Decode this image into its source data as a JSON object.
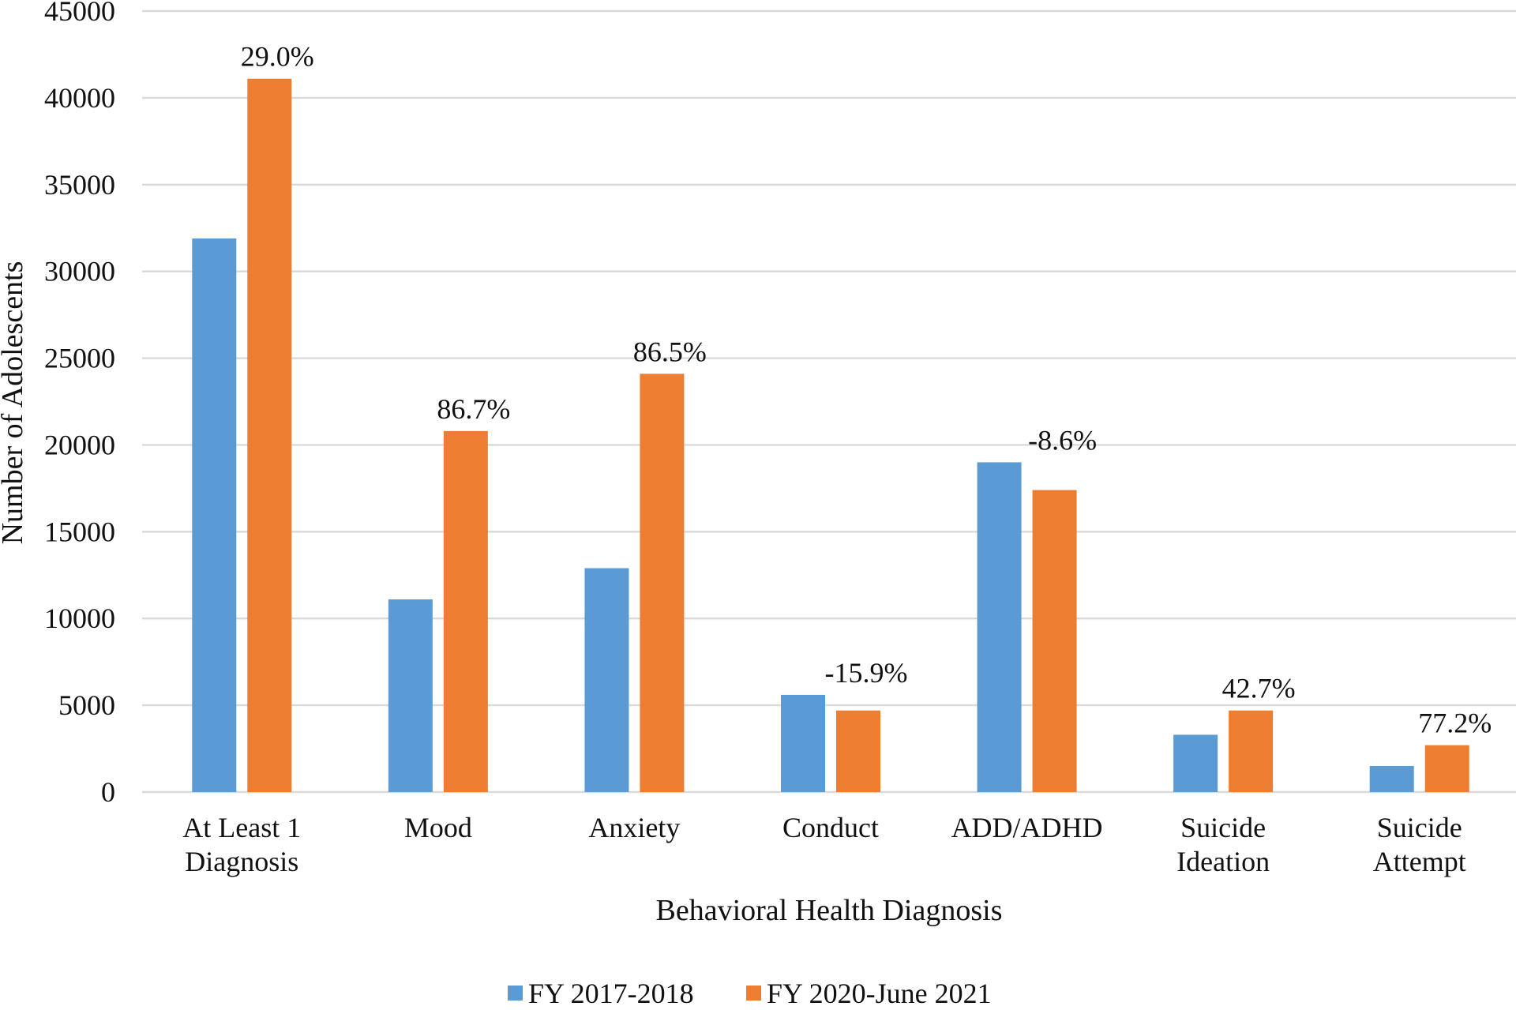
{
  "chart_data": {
    "type": "bar",
    "title": "",
    "xlabel": "Behavioral Health Diagnosis",
    "ylabel": "Number of Adolescents",
    "ylim": [
      0,
      45000
    ],
    "yticks": [
      0,
      5000,
      10000,
      15000,
      20000,
      25000,
      30000,
      35000,
      40000,
      45000
    ],
    "grid": true,
    "legend_position": "bottom",
    "categories": [
      [
        "At Least 1",
        "Diagnosis"
      ],
      [
        "Mood"
      ],
      [
        "Anxiety"
      ],
      [
        "Conduct"
      ],
      [
        "ADD/ADHD"
      ],
      [
        "Suicide",
        "Ideation"
      ],
      [
        "Suicide",
        "Attempt"
      ]
    ],
    "series": [
      {
        "name": "FY 2017-2018",
        "color": "#5b9bd5",
        "values": [
          31900,
          11100,
          12900,
          5600,
          19000,
          3300,
          1500
        ]
      },
      {
        "name": "FY 2020-June 2021",
        "color": "#ed7d31",
        "values": [
          41100,
          20800,
          24100,
          4700,
          17400,
          4700,
          2700
        ]
      }
    ],
    "annotations": [
      "29.0%",
      "86.7%",
      "86.5%",
      "-15.9%",
      "-8.6%",
      "42.7%",
      "77.2%"
    ]
  }
}
